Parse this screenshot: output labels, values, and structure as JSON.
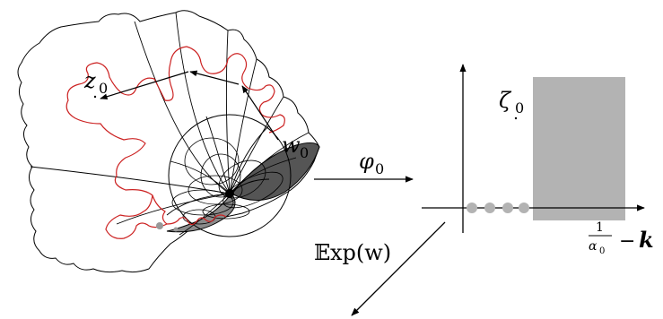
{
  "labels": {
    "z_main": "z",
    "z_sub": "0",
    "w_main": "w",
    "w_sub": "0",
    "phi_main": "φ",
    "phi_sub": "0",
    "zeta_main": "ζ",
    "zeta_sub": "0",
    "exp_bb": "𝔼",
    "exp_rest": "xp(w)",
    "frac_num": "1",
    "frac_den_main": "α",
    "frac_den_sub": "0",
    "minus": "−",
    "k_bold": "k"
  },
  "colors": {
    "curve_red": "#cc2222",
    "shade_gray": "#b3b3b3",
    "dark_gray": "#555555",
    "dot_gray": "#b3b3b3",
    "line_black": "#000000"
  }
}
